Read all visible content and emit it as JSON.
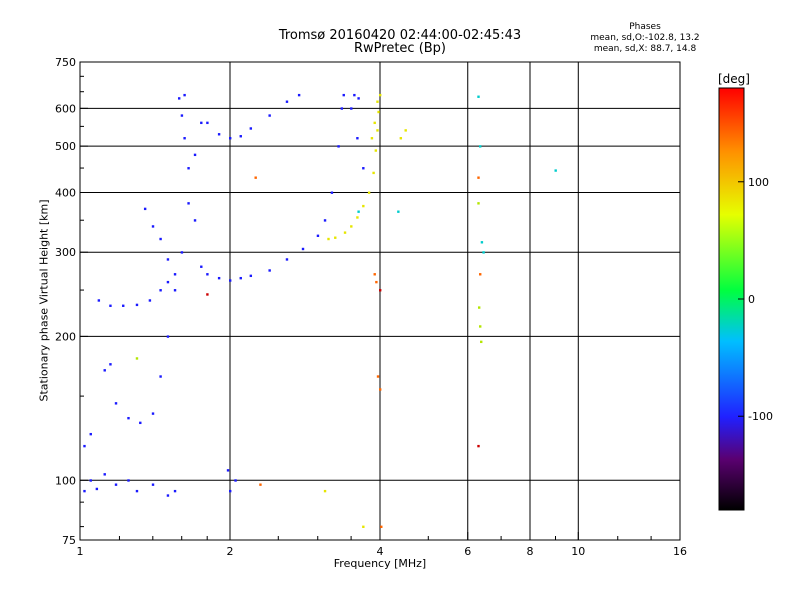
{
  "chart_data": {
    "type": "scatter",
    "title": "Tromsø 20160420 02:44:00-02:45:43",
    "subtitle": "RwPretec (Bp)",
    "phase_header": "Phases",
    "phase_line1": "mean, sd,O:-102.8, 13.2",
    "phase_line2": "mean, sd,X:  88.7, 14.8",
    "xlabel": "Frequency [MHz]",
    "ylabel": "Stationary phase Virtual Height [km]",
    "x_scale": "log",
    "y_scale": "log",
    "xlim": [
      1,
      16
    ],
    "ylim": [
      75,
      750
    ],
    "x_ticks": [
      1,
      2,
      4,
      6,
      8,
      10,
      16
    ],
    "x_tick_labels": [
      "1",
      "2",
      "4",
      "6",
      "8",
      "10",
      "16"
    ],
    "x_minor_ticks": [
      1.2,
      1.4,
      1.6,
      1.8,
      2.5,
      3,
      3.5,
      5,
      7,
      9,
      12,
      14
    ],
    "y_ticks": [
      75,
      100,
      200,
      300,
      400,
      500,
      600,
      750
    ],
    "y_tick_labels": [
      "75",
      "100",
      "200",
      "300",
      "400",
      "500",
      "600",
      "750"
    ],
    "y_minor_ticks": [
      80,
      90,
      150,
      250,
      350,
      450,
      550,
      650,
      700
    ],
    "grid": true,
    "colorbar": {
      "label": "[deg]",
      "range": [
        -180,
        180
      ],
      "ticks": [
        100,
        0,
        -100
      ],
      "tick_labels": [
        "100",
        "0",
        "-100"
      ]
    },
    "series": [
      {
        "color": "#1a1aff",
        "description": "O-mode (phase approx -100 deg)",
        "points": [
          [
            1.02,
            95
          ],
          [
            1.05,
            100
          ],
          [
            1.08,
            96
          ],
          [
            1.12,
            103
          ],
          [
            1.18,
            98
          ],
          [
            1.25,
            100
          ],
          [
            1.3,
            95
          ],
          [
            1.4,
            98
          ],
          [
            1.5,
            93
          ],
          [
            1.55,
            95
          ],
          [
            1.02,
            118
          ],
          [
            1.05,
            125
          ],
          [
            1.09,
            238
          ],
          [
            1.15,
            232
          ],
          [
            1.22,
            232
          ],
          [
            1.3,
            233
          ],
          [
            1.38,
            238
          ],
          [
            1.45,
            250
          ],
          [
            1.5,
            260
          ],
          [
            1.12,
            170
          ],
          [
            1.15,
            175
          ],
          [
            1.18,
            145
          ],
          [
            1.25,
            135
          ],
          [
            1.32,
            132
          ],
          [
            1.4,
            138
          ],
          [
            1.45,
            165
          ],
          [
            1.5,
            200
          ],
          [
            1.55,
            250
          ],
          [
            1.6,
            300
          ],
          [
            1.65,
            380
          ],
          [
            1.7,
            480
          ],
          [
            1.75,
            560
          ],
          [
            1.58,
            630
          ],
          [
            1.62,
            640
          ],
          [
            1.6,
            580
          ],
          [
            1.62,
            520
          ],
          [
            1.65,
            450
          ],
          [
            1.7,
            350
          ],
          [
            1.75,
            280
          ],
          [
            1.8,
            270
          ],
          [
            1.9,
            265
          ],
          [
            2.0,
            262
          ],
          [
            2.1,
            265
          ],
          [
            2.2,
            268
          ],
          [
            2.4,
            275
          ],
          [
            2.6,
            290
          ],
          [
            2.8,
            305
          ],
          [
            3.0,
            325
          ],
          [
            3.1,
            350
          ],
          [
            3.2,
            400
          ],
          [
            3.3,
            500
          ],
          [
            3.35,
            600
          ],
          [
            3.38,
            640
          ],
          [
            1.8,
            560
          ],
          [
            1.9,
            530
          ],
          [
            2.0,
            520
          ],
          [
            2.1,
            525
          ],
          [
            2.2,
            545
          ],
          [
            2.4,
            580
          ],
          [
            2.6,
            620
          ],
          [
            2.75,
            640
          ],
          [
            3.5,
            600
          ],
          [
            3.6,
            520
          ],
          [
            3.7,
            450
          ],
          [
            3.55,
            640
          ],
          [
            3.62,
            630
          ],
          [
            1.35,
            370
          ],
          [
            1.4,
            340
          ],
          [
            1.45,
            320
          ],
          [
            1.5,
            290
          ],
          [
            1.55,
            270
          ],
          [
            1.98,
            105
          ],
          [
            2.0,
            95
          ],
          [
            2.05,
            100
          ]
        ]
      },
      {
        "color": "#e6e600",
        "description": "X-mode (phase approx +90 deg)",
        "points": [
          [
            3.15,
            320
          ],
          [
            3.25,
            322
          ],
          [
            3.4,
            330
          ],
          [
            3.5,
            340
          ],
          [
            3.6,
            355
          ],
          [
            3.7,
            375
          ],
          [
            3.8,
            400
          ],
          [
            3.88,
            440
          ],
          [
            3.92,
            490
          ],
          [
            3.95,
            540
          ],
          [
            3.97,
            590
          ],
          [
            4.0,
            640
          ],
          [
            3.85,
            520
          ],
          [
            3.9,
            560
          ],
          [
            3.95,
            620
          ],
          [
            4.4,
            520
          ],
          [
            4.5,
            540
          ],
          [
            3.1,
            95
          ],
          [
            3.7,
            80
          ]
        ]
      },
      {
        "color": "#00cccc",
        "description": "Scattered cyan points",
        "points": [
          [
            6.3,
            635
          ],
          [
            6.35,
            500
          ],
          [
            6.4,
            315
          ],
          [
            6.45,
            300
          ],
          [
            9.0,
            445
          ],
          [
            4.35,
            365
          ],
          [
            3.62,
            365
          ]
        ]
      },
      {
        "color": "#ff6600",
        "description": "Scattered orange points",
        "points": [
          [
            3.9,
            270
          ],
          [
            3.93,
            260
          ],
          [
            3.96,
            165
          ],
          [
            4.0,
            155
          ],
          [
            4.02,
            80
          ],
          [
            6.3,
            430
          ],
          [
            6.35,
            270
          ],
          [
            2.3,
            98
          ],
          [
            2.25,
            430
          ]
        ]
      },
      {
        "color": "#cc0000",
        "description": "Scattered red points",
        "points": [
          [
            6.3,
            118
          ],
          [
            4.0,
            250
          ],
          [
            1.8,
            245
          ]
        ]
      },
      {
        "color": "#b3e600",
        "description": "Scattered yellow-green points",
        "points": [
          [
            6.3,
            380
          ],
          [
            6.32,
            230
          ],
          [
            6.35,
            210
          ],
          [
            6.38,
            195
          ],
          [
            1.3,
            180
          ]
        ]
      }
    ]
  }
}
